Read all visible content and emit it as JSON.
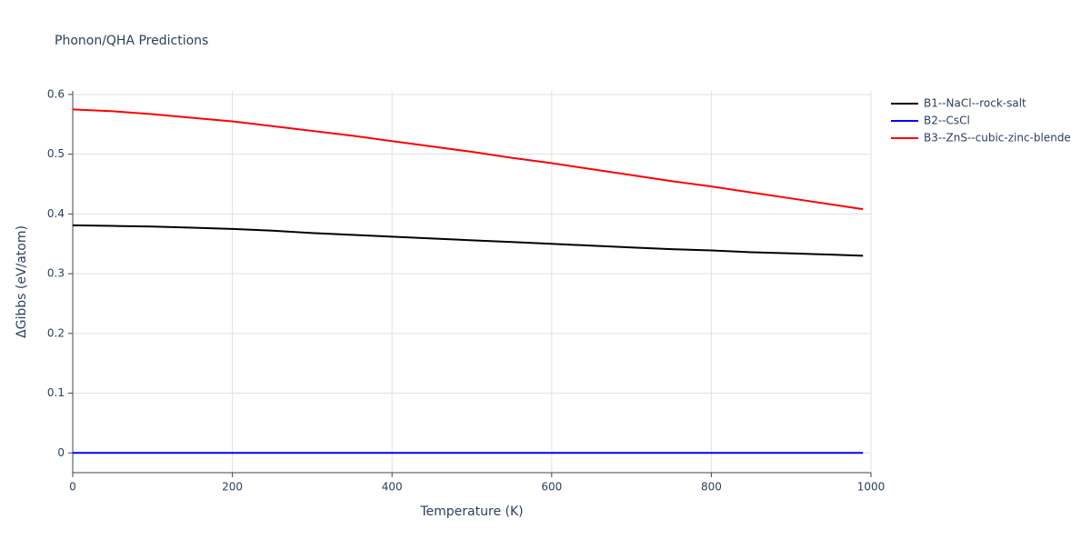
{
  "chart_data": {
    "type": "line",
    "title": "Phonon/QHA Predictions",
    "x_label": "Temperature (K)",
    "y_label": "ΔGibbs (eV/atom)",
    "x": [
      0,
      50,
      100,
      150,
      200,
      250,
      300,
      350,
      400,
      450,
      500,
      550,
      600,
      650,
      700,
      750,
      800,
      850,
      900,
      950,
      990
    ],
    "series": [
      {
        "name": "B1--NaCl--rock-salt",
        "color": "#000000",
        "values": [
          0.381,
          0.38,
          0.379,
          0.377,
          0.375,
          0.372,
          0.368,
          0.365,
          0.362,
          0.359,
          0.356,
          0.353,
          0.35,
          0.347,
          0.344,
          0.341,
          0.339,
          0.336,
          0.334,
          0.332,
          0.33
        ]
      },
      {
        "name": "B2--CsCl",
        "color": "#0000ff",
        "values": [
          0,
          0,
          0,
          0,
          0,
          0,
          0,
          0,
          0,
          0,
          0,
          0,
          0,
          0,
          0,
          0,
          0,
          0,
          0,
          0,
          0
        ]
      },
      {
        "name": "B3--ZnS--cubic-zinc-blende",
        "color": "#ff0000",
        "values": [
          0.575,
          0.572,
          0.567,
          0.561,
          0.555,
          0.547,
          0.539,
          0.531,
          0.522,
          0.513,
          0.504,
          0.494,
          0.485,
          0.475,
          0.465,
          0.455,
          0.446,
          0.436,
          0.426,
          0.416,
          0.408
        ]
      }
    ],
    "xlim": [
      0,
      1000
    ],
    "xticks": [
      0,
      200,
      400,
      600,
      800,
      1000
    ],
    "ylim": [
      -0.033,
      0.606
    ],
    "yticks": [
      0,
      0.1,
      0.2,
      0.3,
      0.4,
      0.5,
      0.6
    ],
    "grid": true,
    "legend": "right"
  }
}
